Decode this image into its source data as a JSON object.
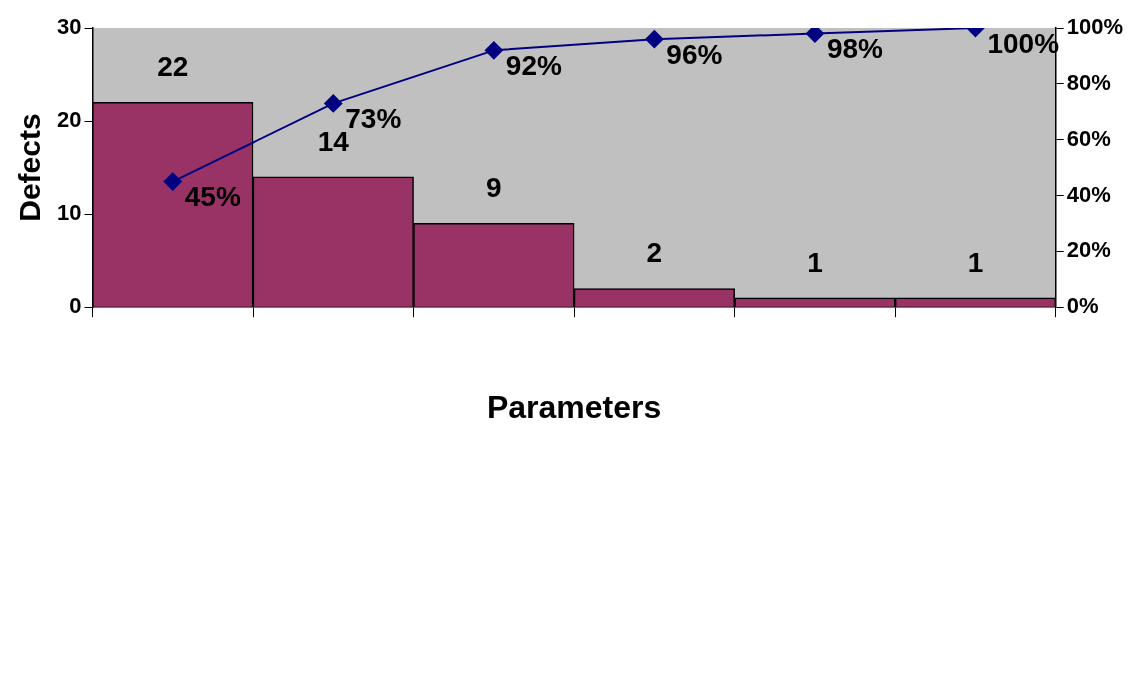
{
  "chart_data": {
    "type": "bar",
    "xlabel": "Parameters",
    "ylabel": "Defects",
    "categories": [
      null,
      null,
      null,
      null,
      null,
      null
    ],
    "series": [
      {
        "color": "#993366",
        "values": [
          22,
          14,
          9,
          2,
          1,
          1
        ],
        "data_labels": true
      },
      {
        "type": "line",
        "axis": "y2",
        "color": "#000080",
        "values": [
          45,
          73,
          92,
          96,
          98,
          100
        ],
        "value_labels": [
          "45%",
          "73%",
          "92%",
          "96%",
          "98%",
          "100%"
        ],
        "marker": "diamond"
      }
    ],
    "ylim": [
      0,
      30
    ],
    "yticks": [
      0,
      10,
      20,
      30
    ],
    "y2lim": [
      0,
      100
    ],
    "y2ticks": [
      {
        "value": 0,
        "label": "0%"
      },
      {
        "value": 20,
        "label": "20%"
      },
      {
        "value": 40,
        "label": "40%"
      },
      {
        "value": 60,
        "label": "60%"
      },
      {
        "value": 80,
        "label": "80%"
      },
      {
        "value": 100,
        "label": "100%"
      }
    ],
    "grid": false,
    "legend": false
  }
}
